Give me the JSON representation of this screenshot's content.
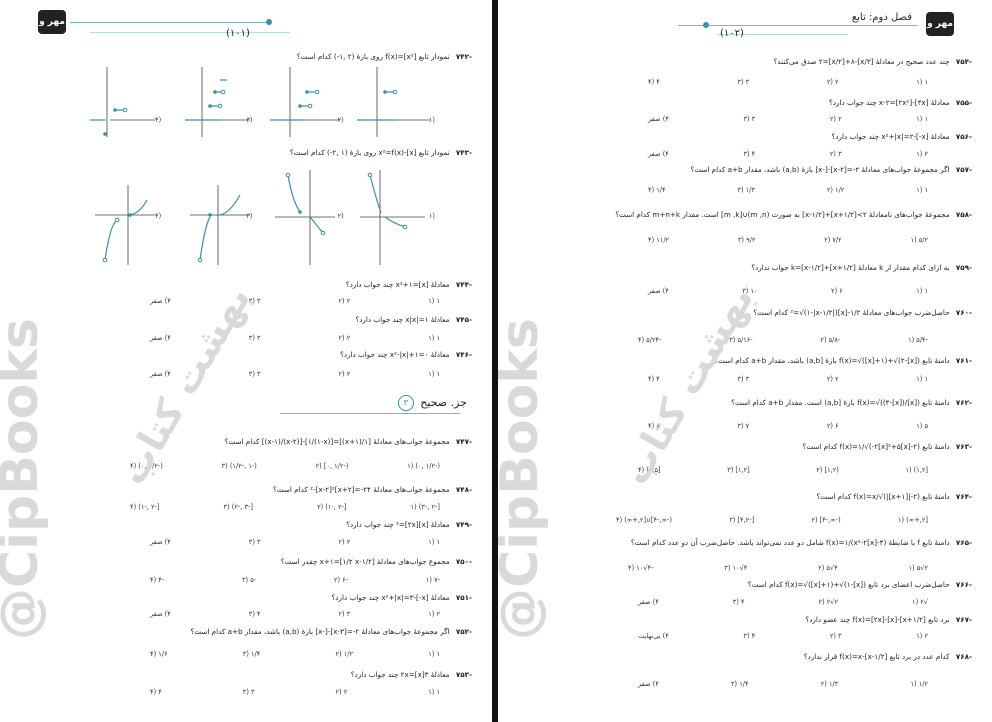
{
  "left_page": {
    "page_number": "(۱۰۱)",
    "logo": "مهر و ماه",
    "questions": [
      {
        "num": "-۷۴۲",
        "text": "نمودار تابع [x²]=f(x) روی بازهٔ (۲ ,۱-) کدام است؟"
      },
      {
        "num": "-۷۴۳",
        "text": "نمودار تابع [x]-x²=f(x) روی بازهٔ (۱ ,۲-) کدام است؟"
      },
      {
        "num": "-۷۴۴",
        "text": "معادلهٔ x²+۱=[x] چند جواب دارد؟"
      },
      {
        "num": "-۷۴۵",
        "text": "معادلهٔ x|x|=۱ چند جواب دارد؟"
      },
      {
        "num": "-۷۴۶",
        "text": "معادلهٔ x²-|x|+۱=۰ چند جواب دارد؟"
      },
      {
        "num": "-۷۴۷",
        "text": "مجموعهٔ جواب‌های معادلهٔ [۱/(x+۱)]=[۱/(۱-x)]-[(x-۲)/(x-۱)] کدام است؟"
      },
      {
        "num": "-۷۴۸",
        "text": "مجموعهٔ جواب‌های معادلهٔ ۲۴-=[x+۲]²-[x-۲]² کدام است؟"
      },
      {
        "num": "-۷۴۹",
        "text": "معادلهٔ [x]²=[۲x] چند جواب دارد؟"
      },
      {
        "num": "-۷۵۰",
        "text": "مجموع جواب‌های معادلهٔ x+۱=[۱/۲ x-۱/۲] چقدر است؟"
      },
      {
        "num": "-۷۵۱",
        "text": "معادلهٔ x²+|x|=۳-[-x] چند جواب دارد؟"
      },
      {
        "num": "-۷۵۲",
        "text": "اگر مجموعهٔ جواب‌های معادلهٔ ۲-=[x-۳]-[-x] بازهٔ (a,b) باشد، مقدار a+b کدام است؟"
      },
      {
        "num": "-۷۵۳",
        "text": "معادلهٔ ۲x=[x]۳ چند جواب دارد؟"
      }
    ],
    "graph_options_742": [
      "(۱",
      "(۲",
      "(۳",
      "(۴"
    ],
    "graph_options_743": [
      "(۱",
      "(۲",
      "(۳",
      "(۴"
    ],
    "options": {
      "q744": [
        "۱ (۱",
        "۲ (۲",
        "۳ (۳",
        "۴) صفر"
      ],
      "q745": [
        "۱ (۱",
        "۲ (۲",
        "۳ (۳",
        "۴) صفر"
      ],
      "q746": [
        "۱ (۱",
        "۲ (۲",
        "۳ (۳",
        "۴) صفر"
      ],
      "q747": [
        "(-۱/۲ ,۰) (۱",
        "(-۱/۲ ,۰] (۲",
        "(-۱ ,-۱/۲) (۳",
        "(-۱/۲ ,۰) (۴"
      ],
      "q748": [
        "[-۲ ,-۳) (۱",
        "[-۲ ,-۱) (۲",
        "[-۳ ,-۲) (۳",
        "[-۲ ,-۱) (۴"
      ],
      "q749": [
        "۱ (۱",
        "۲ (۲",
        "۳ (۳",
        "۴) صفر"
      ],
      "q750": [
        "-۷ (۱",
        "-۶ (۲",
        "-۵ (۳",
        "-۴ (۴"
      ],
      "q751": [
        "۲ (۱",
        "۳ (۲",
        "۴ (۳",
        "۴) صفر"
      ],
      "q752": [
        "۱ (۱",
        "۱/۲ (۲",
        "۱/۴ (۳",
        "۱/۶ (۴"
      ],
      "q753": [
        "۱ (۱",
        "۲ (۲",
        "۳ (۳",
        "۴ (۴"
      ]
    },
    "section_title": "جز. صحیح",
    "section_badge": "۳"
  },
  "right_page": {
    "page_number": "(۱۰۲)",
    "chapter_title": "فصل دوم: تابع",
    "logo": "مهر و ماه",
    "questions": [
      {
        "num": "-۷۵۴",
        "text": "چند عدد صحیح در معادلهٔ [x/۳]-۲=[x/۲]+۸ صدق می‌کنند؟"
      },
      {
        "num": "-۷۵۵",
        "text": "معادلهٔ x-۲=[۲x²]-[۴x] چند جواب دارد؟"
      },
      {
        "num": "-۷۵۶",
        "text": "معادلهٔ x²+|x|=۲-[-x] چند جواب دارد؟"
      },
      {
        "num": "-۷۵۷",
        "text": "اگر مجموعهٔ جواب‌های معادلهٔ ۲-=[x-۲]-[-x] بازهٔ (a,b) باشد، مقدار a+b کدام است؟"
      },
      {
        "num": "-۷۵۸",
        "text": "مجموعهٔ جواب‌های نامعادلهٔ ۲>[x+۱/۲]+[x-۱/۲] به صورت (m ,n)∪[m ,k] است. مقدار m+n+k کدام است؟"
      },
      {
        "num": "-۷۵۹",
        "text": "به ازای کدام مقدار از k معادلهٔ [x+۱/۲]+[x-۱/۲]=k جواب ندارد؟"
      },
      {
        "num": "-۷۶۰",
        "text": "حاصل‌ضرب جواب‌های معادلهٔ ۱/۲-[x]²=√(۱-|x-۱/۲|) کدام است؟"
      },
      {
        "num": "-۷۶۱",
        "text": "دامنهٔ تابع f(x)=√([x]+۱)+√(۲-[x]) بازهٔ [a,b) باشد، مقدار a+b کدام است؟"
      },
      {
        "num": "-۷۶۲",
        "text": "دامنهٔ تابع f(x)=√((۴-[x])/[x]) بازهٔ [a,b) است. مقدار a+b کدام است؟"
      },
      {
        "num": "-۷۶۳",
        "text": "دامنهٔ تابع f(x)=۱/√(-۲[x]²+۵[x]-۲) کدام است؟"
      },
      {
        "num": "-۷۶۴",
        "text": "دامنهٔ تابع f(x)=x/√(|[x+۱]|-۲) کدام است؟"
      },
      {
        "num": "-۷۶۵",
        "text": "دامنهٔ تابع f با ضابطهٔ f(x)=۱/(x²-۲[x]-۴) شامل دو عدد نمی‌تواند باشد. حاصل‌ضرب آن دو عدد کدام است؟"
      },
      {
        "num": "-۷۶۶",
        "text": "حاصل‌ضرب اعضای برد تابع f(x)=√([x]+۱)+√(۱-[x]) کدام است؟"
      },
      {
        "num": "-۷۶۷",
        "text": "برد تابع f(x)=[۲x]-[x]-[x+۱/۲] چند عضو دارد؟"
      },
      {
        "num": "-۷۶۸",
        "text": "کدام عدد در برد تابع f(x)=x-[x-۱/۲] قرار ندارد؟"
      }
    ],
    "options": {
      "q754": [
        "۱ (۱",
        "۲ (۲",
        "۳ (۳",
        "۴ (۴"
      ],
      "q755": [
        "۱ (۱",
        "۲ (۲",
        "۳ (۳",
        "۴) صفر"
      ],
      "q756": [
        "۲ (۱",
        "۳ (۲",
        "۴ (۳",
        "۴) صفر"
      ],
      "q757": [
        "۱ (۱",
        "۱/۲ (۲",
        "۱/۳ (۳",
        "۱/۴ (۴"
      ],
      "q758": [
        "۵/۲ (۱",
        "۷/۲ (۲",
        "۹/۲ (۳",
        "۱۱/۲ (۴"
      ],
      "q759": [
        "۱ (۱",
        "۶ (۲",
        "۱۰ (۳",
        "۴) صفر"
      ],
      "q760": [
        "-۵/۴ (۱",
        "-۵/۸ (۲",
        "-۵/۱۶ (۳",
        "-۵/۲۴ (۴"
      ],
      "q761": [
        "۱ (۱",
        "۲ (۲",
        "۳ (۳",
        "۴ (۴"
      ],
      "q762": [
        "۵ (۱",
        "۶ (۲",
        "۷ (۳",
        "۸ (۴"
      ],
      "q763": [
        "[۱,۲) (۱",
        "(۱,۲] (۲",
        "[۱,۲] (۳",
        "[۱,۵) (۴"
      ],
      "q764": [
        "[۲,+∞) (۱",
        "(-∞,-۴] (۲",
        "[-۴,۲] (۳",
        "(-∞,-۴]∪[۲,+∞) (۴"
      ],
      "q765": [
        "۲√۵ (۱",
        "۴√۵ (۲",
        "۴√۱۰ (۳",
        "-۴√۱۰ (۴"
      ],
      "q766": [
        "√۲ (۱",
        "۲√۲ (۲",
        "۴ (۳",
        "۴) صفر"
      ],
      "q767": [
        "۲ (۱",
        "۳ (۲",
        "۴ (۳",
        "۴) بی‌نهایت"
      ],
      "q768": [
        "۱/۲ (۱",
        "۱/۳ (۲",
        "۱/۴ (۳",
        "۴) صفر"
      ]
    }
  },
  "watermarks": {
    "cip": "@CipBooks",
    "brand": "بهشت کتاب"
  }
}
